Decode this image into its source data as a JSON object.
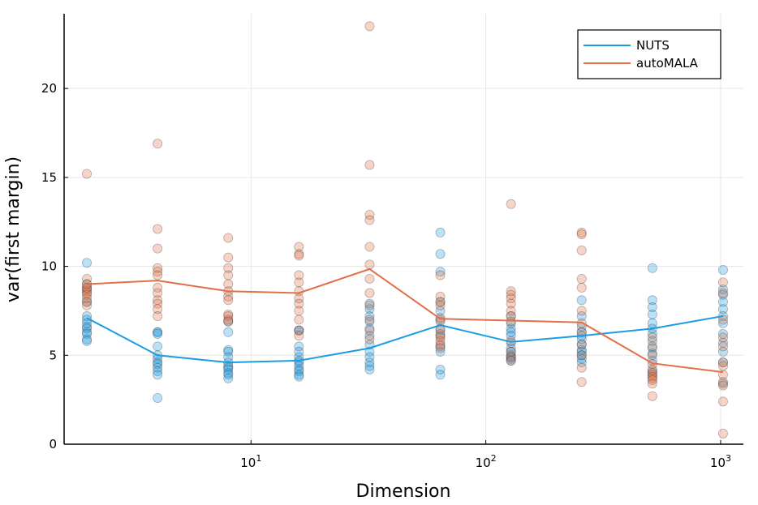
{
  "chart_data": {
    "type": "scatter",
    "xlabel": "Dimension",
    "ylabel": "var(first margin)",
    "xscale": "log10",
    "xlim": [
      1.6,
      1250
    ],
    "ylim": [
      0,
      24.2
    ],
    "yticks": [
      0,
      5,
      10,
      15,
      20
    ],
    "ytick_labels": [
      "0",
      "5",
      "10",
      "15",
      "20"
    ],
    "xticks": [
      10,
      100,
      1000
    ],
    "xtick_labels": [
      {
        "base": "10",
        "exp": "1"
      },
      {
        "base": "10",
        "exp": "2"
      },
      {
        "base": "10",
        "exp": "3"
      }
    ],
    "grid": true,
    "legend_position": "top-right",
    "dimensions": [
      2,
      4,
      8,
      16,
      32,
      64,
      128,
      256,
      512,
      1024
    ],
    "series": [
      {
        "name": "NUTS",
        "color": "#1a9ce6",
        "means": [
          7.1,
          5.0,
          4.6,
          4.7,
          5.4,
          6.7,
          5.75,
          6.1,
          6.5,
          7.2
        ],
        "samples": [
          [
            10.2,
            9.0,
            8.0,
            7.2,
            7.0,
            6.8,
            6.6,
            6.5,
            6.3,
            6.2,
            5.9,
            5.8
          ],
          [
            6.3,
            6.3,
            6.2,
            5.5,
            5.0,
            4.8,
            4.6,
            4.5,
            4.3,
            4.1,
            3.9,
            2.6
          ],
          [
            6.9,
            6.3,
            5.3,
            5.2,
            4.9,
            4.6,
            4.4,
            4.3,
            4.2,
            4.0,
            3.9,
            3.7
          ],
          [
            6.4,
            6.4,
            5.5,
            5.2,
            4.9,
            4.7,
            4.6,
            4.4,
            4.2,
            4.1,
            3.9,
            3.8
          ],
          [
            7.9,
            7.6,
            6.9,
            6.5,
            6.1,
            5.6,
            5.2,
            4.9,
            4.6,
            4.4,
            4.2,
            7.2
          ],
          [
            11.9,
            10.7,
            9.7,
            8.0,
            7.5,
            7.0,
            6.4,
            6.1,
            5.5,
            5.2,
            4.2,
            3.9
          ],
          [
            7.2,
            6.8,
            6.5,
            6.3,
            6.1,
            5.7,
            5.4,
            5.2,
            5.0,
            4.9,
            4.8,
            4.7
          ],
          [
            8.1,
            7.2,
            6.6,
            6.3,
            6.1,
            5.9,
            5.6,
            5.3,
            5.2,
            5.0,
            4.8,
            4.6
          ],
          [
            9.9,
            8.1,
            7.7,
            7.3,
            6.8,
            6.5,
            6.2,
            5.8,
            5.4,
            5.1,
            4.7,
            4.1
          ],
          [
            9.8,
            8.7,
            8.4,
            8.0,
            7.6,
            7.2,
            6.8,
            6.2,
            5.7,
            5.2,
            4.6,
            3.4
          ]
        ]
      },
      {
        "name": "autoMALA",
        "color": "#e26f46",
        "means": [
          9.0,
          9.2,
          8.6,
          8.5,
          9.85,
          7.05,
          6.95,
          6.85,
          4.55,
          4.05
        ],
        "samples": [
          [
            15.2,
            9.3,
            8.8,
            8.7,
            8.6,
            8.5,
            8.4,
            8.2,
            8.0,
            8.8,
            9.0,
            7.8
          ],
          [
            16.9,
            12.1,
            11.0,
            9.9,
            9.7,
            9.5,
            8.8,
            8.5,
            8.1,
            7.9,
            7.6,
            7.2
          ],
          [
            11.6,
            10.5,
            9.9,
            9.5,
            9.0,
            8.6,
            8.3,
            8.1,
            7.3,
            7.2,
            7.0,
            6.9
          ],
          [
            11.1,
            10.7,
            10.6,
            9.5,
            9.1,
            8.6,
            8.2,
            7.9,
            7.5,
            7.0,
            6.4,
            6.1
          ],
          [
            23.5,
            15.7,
            12.9,
            12.6,
            11.1,
            10.1,
            9.3,
            8.5,
            7.8,
            7.0,
            6.4,
            5.9
          ],
          [
            9.5,
            8.3,
            8.0,
            7.8,
            7.1,
            6.9,
            6.5,
            6.2,
            6.0,
            5.8,
            5.6,
            5.4
          ],
          [
            13.5,
            8.6,
            8.4,
            8.2,
            7.9,
            7.5,
            7.2,
            6.9,
            5.8,
            5.2,
            4.9,
            4.7
          ],
          [
            11.9,
            11.8,
            10.9,
            9.3,
            8.8,
            7.5,
            6.8,
            6.3,
            5.6,
            5.0,
            4.3,
            3.5
          ],
          [
            6.0,
            5.5,
            5.0,
            4.5,
            4.2,
            4.0,
            3.9,
            3.8,
            3.7,
            3.6,
            3.4,
            2.7
          ],
          [
            9.1,
            8.5,
            7.0,
            6.0,
            5.5,
            4.6,
            4.4,
            3.9,
            3.5,
            3.3,
            2.4,
            0.6
          ]
        ]
      }
    ]
  }
}
